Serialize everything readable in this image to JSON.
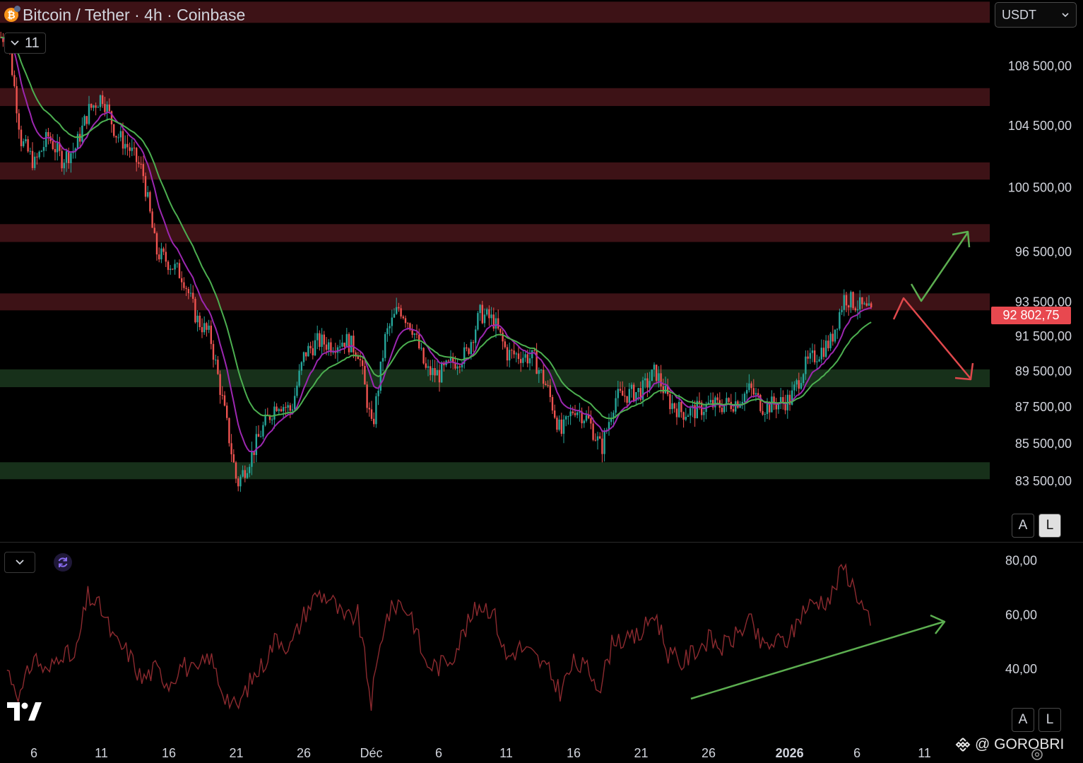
{
  "header": {
    "title": "Bitcoin / Tether · 4h · Coinbase",
    "coin_symbol": "₿",
    "indicator_count": "11",
    "currency": "USDT"
  },
  "price_tag": {
    "value": "92 802,75",
    "color": "#e8484f"
  },
  "scale_buttons": {
    "auto": "A",
    "log": "L"
  },
  "watermark": "@ GOROBRI",
  "colors": {
    "up": "#26a69a",
    "down": "#ef5350",
    "resistance_zone": "#3d1216",
    "support_zone": "#17301a",
    "ema_fast": "#9c27b0",
    "ema_slow": "#4caf50",
    "rsi_line": "#8c2a2f",
    "arrow_up": "#5cae50",
    "arrow_down": "#e0484c"
  },
  "chart_data": [
    {
      "type": "candlestick",
      "title": "Bitcoin / Tether · 4h · Coinbase",
      "y_scale": "log",
      "ylim": [
        80000,
        116000
      ],
      "y_ticks": [
        {
          "value": 108500,
          "label": "108 500,00"
        },
        {
          "value": 104500,
          "label": "104 500,00"
        },
        {
          "value": 100500,
          "label": "100 500,00"
        },
        {
          "value": 96500,
          "label": "96 500,00"
        },
        {
          "value": 93500,
          "label": "93 500,00"
        },
        {
          "value": 91500,
          "label": "91 500,00"
        },
        {
          "value": 89500,
          "label": "89 500,00"
        },
        {
          "value": 87500,
          "label": "87 500,00"
        },
        {
          "value": 85500,
          "label": "85 500,00"
        },
        {
          "value": 83500,
          "label": "83 500,00"
        }
      ],
      "last_price": 92802.75,
      "x_ticks": [
        {
          "date": "2025-11-06",
          "label": "6"
        },
        {
          "date": "2025-11-11",
          "label": "11"
        },
        {
          "date": "2025-11-16",
          "label": "16"
        },
        {
          "date": "2025-11-21",
          "label": "21"
        },
        {
          "date": "2025-11-26",
          "label": "26"
        },
        {
          "date": "2025-12-01",
          "label": "Déc"
        },
        {
          "date": "2025-12-06",
          "label": "6"
        },
        {
          "date": "2025-12-11",
          "label": "11"
        },
        {
          "date": "2025-12-16",
          "label": "16"
        },
        {
          "date": "2025-12-21",
          "label": "21"
        },
        {
          "date": "2025-12-26",
          "label": "26"
        },
        {
          "date": "2026-01-01",
          "label": "2026",
          "bold": true
        },
        {
          "date": "2026-01-06",
          "label": "6"
        },
        {
          "date": "2026-01-11",
          "label": "11"
        }
      ],
      "zones": [
        {
          "kind": "resistance",
          "low": 111500,
          "high": 113000
        },
        {
          "kind": "resistance",
          "low": 105800,
          "high": 107000
        },
        {
          "kind": "resistance",
          "low": 101000,
          "high": 102100
        },
        {
          "kind": "resistance",
          "low": 97100,
          "high": 98200
        },
        {
          "kind": "resistance",
          "low": 93000,
          "high": 94000
        },
        {
          "kind": "support",
          "low": 88600,
          "high": 89600
        },
        {
          "kind": "support",
          "low": 83600,
          "high": 84500
        }
      ],
      "price_path": [
        [
          "2025-11-04",
          110500
        ],
        [
          "2025-11-05",
          103500
        ],
        [
          "2025-11-06",
          102000
        ],
        [
          "2025-11-07",
          103800
        ],
        [
          "2025-11-08",
          102300
        ],
        [
          "2025-11-09",
          103000
        ],
        [
          "2025-11-10",
          105500
        ],
        [
          "2025-11-11",
          106500
        ],
        [
          "2025-11-12",
          104000
        ],
        [
          "2025-11-13",
          103000
        ],
        [
          "2025-11-14",
          101500
        ],
        [
          "2025-11-15",
          96500
        ],
        [
          "2025-11-16",
          95800
        ],
        [
          "2025-11-17",
          95000
        ],
        [
          "2025-11-18",
          92500
        ],
        [
          "2025-11-19",
          91500
        ],
        [
          "2025-11-20",
          87500
        ],
        [
          "2025-11-21",
          83300
        ],
        [
          "2025-11-22",
          84800
        ],
        [
          "2025-11-23",
          86500
        ],
        [
          "2025-11-24",
          87800
        ],
        [
          "2025-11-25",
          87300
        ],
        [
          "2025-11-26",
          90500
        ],
        [
          "2025-11-27",
          91200
        ],
        [
          "2025-11-28",
          91000
        ],
        [
          "2025-11-29",
          91300
        ],
        [
          "2025-11-30",
          90600
        ],
        [
          "2025-12-01",
          86200
        ],
        [
          "2025-12-02",
          91500
        ],
        [
          "2025-12-03",
          93200
        ],
        [
          "2025-12-04",
          92000
        ],
        [
          "2025-12-05",
          89500
        ],
        [
          "2025-12-06",
          89300
        ],
        [
          "2025-12-07",
          90000
        ],
        [
          "2025-12-08",
          90500
        ],
        [
          "2025-12-09",
          92800
        ],
        [
          "2025-12-10",
          92400
        ],
        [
          "2025-12-11",
          90500
        ],
        [
          "2025-12-12",
          90400
        ],
        [
          "2025-12-13",
          90200
        ],
        [
          "2025-12-14",
          88500
        ],
        [
          "2025-12-15",
          86000
        ],
        [
          "2025-12-16",
          87500
        ],
        [
          "2025-12-17",
          86800
        ],
        [
          "2025-12-18",
          85200
        ],
        [
          "2025-12-19",
          88000
        ],
        [
          "2025-12-20",
          88200
        ],
        [
          "2025-12-21",
          88400
        ],
        [
          "2025-12-22",
          89500
        ],
        [
          "2025-12-23",
          87800
        ],
        [
          "2025-12-24",
          87200
        ],
        [
          "2025-12-25",
          87300
        ],
        [
          "2025-12-26",
          87600
        ],
        [
          "2025-12-27",
          87600
        ],
        [
          "2025-12-28",
          87800
        ],
        [
          "2025-12-29",
          88500
        ],
        [
          "2025-12-30",
          87500
        ],
        [
          "2025-12-31",
          87700
        ],
        [
          "2026-01-01",
          87900
        ],
        [
          "2026-01-02",
          89700
        ],
        [
          "2026-01-03",
          90500
        ],
        [
          "2026-01-04",
          91200
        ],
        [
          "2026-01-05",
          93800
        ],
        [
          "2026-01-06",
          93300
        ],
        [
          "2026-01-07",
          92800
        ]
      ],
      "annotations": [
        {
          "type": "arrow",
          "color": "green",
          "meaning": "bullish breakout scenario"
        },
        {
          "type": "arrow",
          "color": "red",
          "meaning": "bearish rejection scenario"
        }
      ]
    },
    {
      "type": "line",
      "indicator": "RSI",
      "ylim": [
        20,
        85
      ],
      "y_ticks": [
        {
          "value": 80,
          "label": "80,00"
        },
        {
          "value": 60,
          "label": "60,00"
        },
        {
          "value": 40,
          "label": "40,00"
        }
      ],
      "series": [
        {
          "values": [
            [
              "2025-11-04",
              40
            ],
            [
              "2025-11-05",
              30
            ],
            [
              "2025-11-06",
              45
            ],
            [
              "2025-11-07",
              38
            ],
            [
              "2025-11-08",
              47
            ],
            [
              "2025-11-09",
              43
            ],
            [
              "2025-11-10",
              67
            ],
            [
              "2025-11-11",
              62
            ],
            [
              "2025-11-12",
              50
            ],
            [
              "2025-11-13",
              46
            ],
            [
              "2025-11-14",
              36
            ],
            [
              "2025-11-15",
              40
            ],
            [
              "2025-11-16",
              35
            ],
            [
              "2025-11-17",
              42
            ],
            [
              "2025-11-18",
              38
            ],
            [
              "2025-11-19",
              45
            ],
            [
              "2025-11-20",
              32
            ],
            [
              "2025-11-21",
              25
            ],
            [
              "2025-11-22",
              35
            ],
            [
              "2025-11-23",
              42
            ],
            [
              "2025-11-24",
              52
            ],
            [
              "2025-11-25",
              48
            ],
            [
              "2025-11-26",
              60
            ],
            [
              "2025-11-27",
              68
            ],
            [
              "2025-11-28",
              66
            ],
            [
              "2025-11-29",
              58
            ],
            [
              "2025-11-30",
              60
            ],
            [
              "2025-12-01",
              28
            ],
            [
              "2025-12-02",
              58
            ],
            [
              "2025-12-03",
              65
            ],
            [
              "2025-12-04",
              60
            ],
            [
              "2025-12-05",
              42
            ],
            [
              "2025-12-06",
              41
            ],
            [
              "2025-12-07",
              45
            ],
            [
              "2025-12-08",
              55
            ],
            [
              "2025-12-09",
              64
            ],
            [
              "2025-12-10",
              62
            ],
            [
              "2025-12-11",
              44
            ],
            [
              "2025-12-12",
              48
            ],
            [
              "2025-12-13",
              45
            ],
            [
              "2025-12-14",
              40
            ],
            [
              "2025-12-15",
              32
            ],
            [
              "2025-12-16",
              42
            ],
            [
              "2025-12-17",
              40
            ],
            [
              "2025-12-18",
              34
            ],
            [
              "2025-12-19",
              52
            ],
            [
              "2025-12-20",
              50
            ],
            [
              "2025-12-21",
              53
            ],
            [
              "2025-12-22",
              61
            ],
            [
              "2025-12-23",
              46
            ],
            [
              "2025-12-24",
              42
            ],
            [
              "2025-12-25",
              47
            ],
            [
              "2025-12-26",
              51
            ],
            [
              "2025-12-27",
              48
            ],
            [
              "2025-12-28",
              52
            ],
            [
              "2025-12-29",
              58
            ],
            [
              "2025-12-30",
              48
            ],
            [
              "2025-12-31",
              50
            ],
            [
              "2026-01-01",
              51
            ],
            [
              "2026-01-02",
              62
            ],
            [
              "2026-01-03",
              65
            ],
            [
              "2026-01-04",
              66
            ],
            [
              "2026-01-05",
              78
            ],
            [
              "2026-01-06",
              68
            ],
            [
              "2026-01-07",
              56
            ]
          ]
        }
      ],
      "annotations": [
        {
          "type": "arrow",
          "color": "green",
          "meaning": "rising RSI trendline"
        }
      ]
    }
  ]
}
